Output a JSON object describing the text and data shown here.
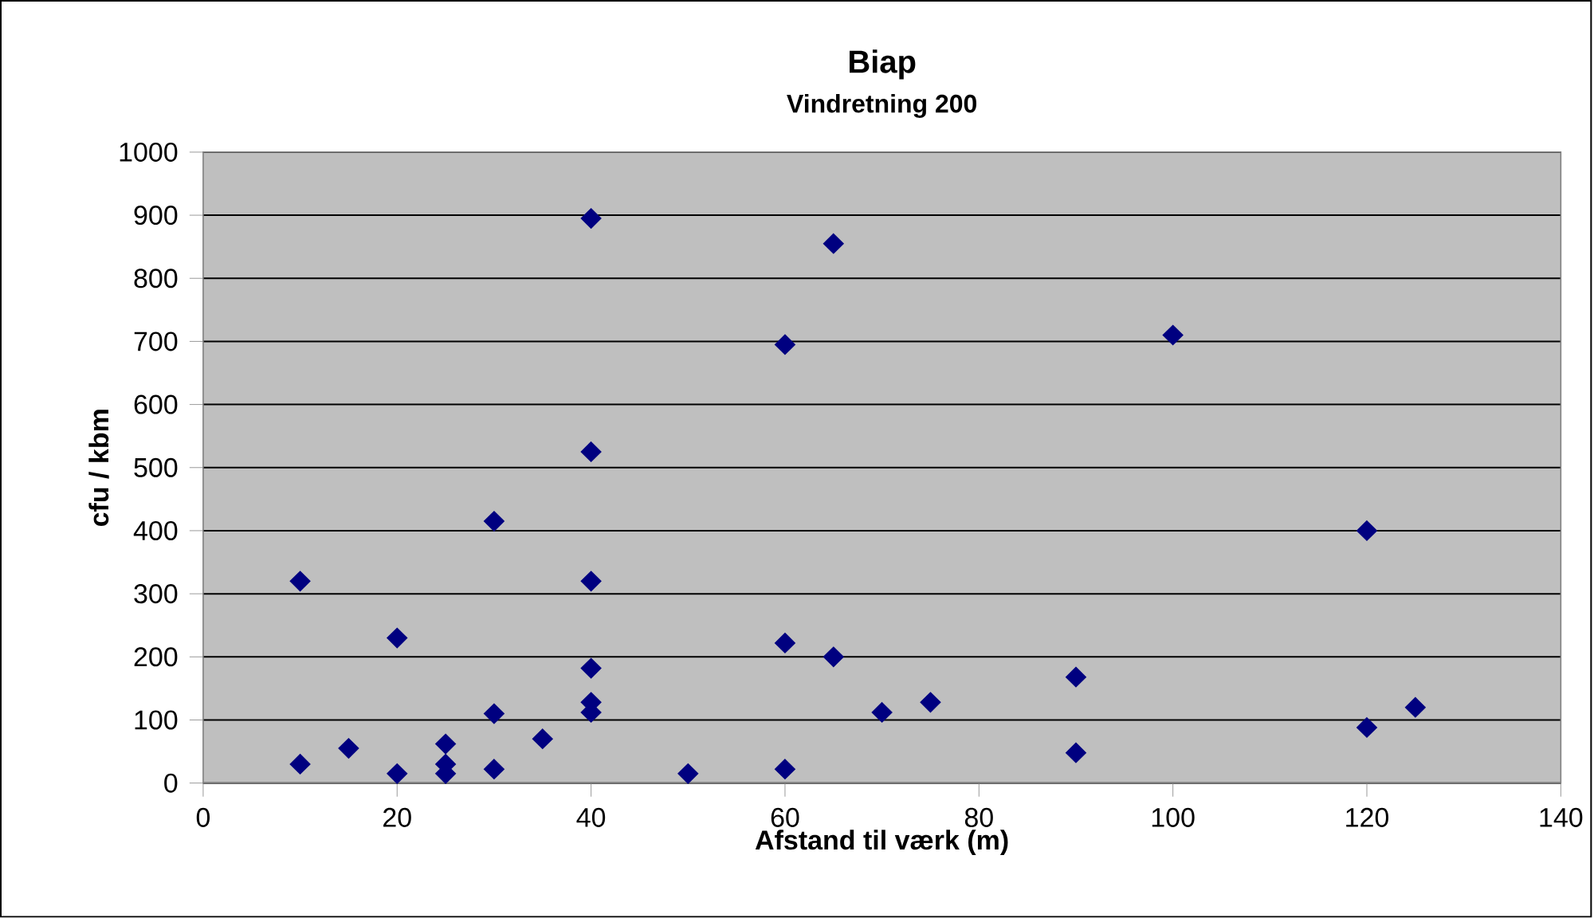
{
  "chart_data": {
    "type": "scatter",
    "title": "Biap",
    "subtitle": "Vindretning 200",
    "xlabel": "Afstand til værk (m)",
    "ylabel": "cfu / kbm",
    "x": [
      10,
      10,
      15,
      20,
      20,
      25,
      25,
      25,
      30,
      30,
      30,
      35,
      40,
      40,
      40,
      40,
      40,
      40,
      50,
      60,
      60,
      60,
      65,
      65,
      70,
      75,
      90,
      90,
      100,
      120,
      120,
      125
    ],
    "values": [
      320,
      30,
      55,
      230,
      15,
      62,
      30,
      15,
      415,
      110,
      22,
      70,
      895,
      525,
      320,
      182,
      128,
      112,
      15,
      695,
      222,
      22,
      855,
      200,
      112,
      128,
      168,
      48,
      710,
      400,
      88,
      120
    ],
    "color": "#000080",
    "marker": "diamond",
    "grid": "y",
    "xlim": [
      0,
      140
    ],
    "xticks": [
      0,
      20,
      40,
      60,
      80,
      100,
      120,
      140
    ],
    "ylim": [
      0,
      1000
    ],
    "yticks": [
      0,
      100,
      200,
      300,
      400,
      500,
      600,
      700,
      800,
      900,
      1000
    ]
  }
}
